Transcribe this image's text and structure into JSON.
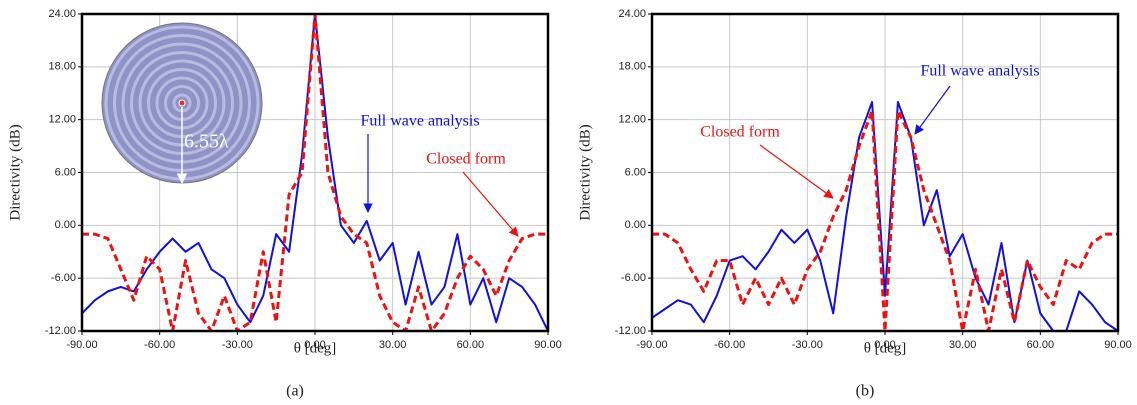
{
  "chart_data": [
    {
      "type": "line",
      "caption": "(a)",
      "xlabel": "θ [deg]",
      "ylabel": "Directivity (dB)",
      "inset_label": "6.55λ",
      "x": [
        -90,
        -85,
        -80,
        -75,
        -70,
        -65,
        -60,
        -55,
        -50,
        -45,
        -40,
        -35,
        -30,
        -25,
        -20,
        -15,
        -10,
        -5,
        0,
        5,
        10,
        15,
        20,
        25,
        30,
        35,
        40,
        45,
        50,
        55,
        60,
        65,
        70,
        75,
        80,
        85,
        90
      ],
      "series": [
        {
          "name": "Full wave analysis",
          "color": "#1010e0",
          "style": "solid",
          "values": [
            -10,
            -8.5,
            -7.5,
            -7,
            -7.5,
            -5,
            -3,
            -1.5,
            -3,
            -2,
            -5,
            -6,
            -9,
            -11,
            -8,
            -1,
            -3,
            8,
            24,
            10,
            0,
            -2,
            0.5,
            -4,
            -2,
            -9,
            -3,
            -9,
            -7,
            -1,
            -9,
            -6,
            -11,
            -6,
            -7,
            -9,
            -12
          ]
        },
        {
          "name": "Closed form",
          "color": "#ee1111",
          "style": "dashed",
          "values": [
            -1,
            -1,
            -1.5,
            -5,
            -8.5,
            -3.5,
            -5,
            -12,
            -4,
            -10,
            -12,
            -8,
            -12,
            -11,
            -3,
            -11,
            3.5,
            6,
            24,
            6,
            1,
            -1,
            -2,
            -8,
            -11,
            -12,
            -7,
            -12,
            -10,
            -6,
            -3.5,
            -5,
            -8,
            -4,
            -1.5,
            -1,
            -1
          ]
        }
      ],
      "xlim": [
        -90,
        90
      ],
      "ylim": [
        -12,
        24
      ],
      "grid": true,
      "xticks": [
        {
          "value": -90,
          "label": "-90.00"
        },
        {
          "value": -60,
          "label": "-60.00"
        },
        {
          "value": -30,
          "label": "-30.00"
        },
        {
          "value": 0,
          "label": "0.00"
        },
        {
          "value": 30,
          "label": "30.00"
        },
        {
          "value": 60,
          "label": "60.00"
        },
        {
          "value": 90,
          "label": "90.00"
        }
      ],
      "yticks": [
        {
          "value": -12,
          "label": "-12.00"
        },
        {
          "value": -6,
          "label": "-6.00"
        },
        {
          "value": 0,
          "label": "0.00"
        },
        {
          "value": 6,
          "label": "6.00"
        },
        {
          "value": 12,
          "label": "12.00"
        },
        {
          "value": 18,
          "label": "18.00"
        },
        {
          "value": 24,
          "label": "24.00"
        }
      ]
    },
    {
      "type": "line",
      "caption": "(b)",
      "xlabel": "θ [deg]",
      "ylabel": "Directivity (dB)",
      "x": [
        -90,
        -85,
        -80,
        -75,
        -70,
        -65,
        -60,
        -55,
        -50,
        -45,
        -40,
        -35,
        -30,
        -25,
        -20,
        -15,
        -10,
        -5,
        0,
        5,
        10,
        15,
        20,
        25,
        30,
        35,
        40,
        45,
        50,
        55,
        60,
        65,
        70,
        75,
        80,
        85,
        90
      ],
      "series": [
        {
          "name": "Full wave analysis",
          "color": "#1010e0",
          "style": "solid",
          "values": [
            -10.5,
            -9.5,
            -8.5,
            -9,
            -11,
            -8,
            -4,
            -3.5,
            -5,
            -3,
            -0.5,
            -2,
            -0.5,
            -4,
            -10,
            1,
            10,
            14,
            -8,
            14,
            10,
            0,
            4,
            -3.5,
            -1,
            -6,
            -9,
            -2,
            -11,
            -4,
            -10,
            -12,
            -12,
            -7.5,
            -9,
            -11,
            -12
          ]
        },
        {
          "name": "Closed form",
          "color": "#ee1111",
          "style": "dashed",
          "values": [
            -1,
            -1,
            -2,
            -5,
            -7.5,
            -4,
            -4,
            -9,
            -6,
            -9,
            -6,
            -9,
            -5,
            -3,
            1,
            4,
            9,
            13,
            -12,
            13,
            10,
            4,
            0,
            -4,
            -12,
            -5,
            -12,
            -5,
            -11,
            -4,
            -7,
            -9,
            -4,
            -5,
            -2,
            -1,
            -1
          ]
        }
      ],
      "xlim": [
        -90,
        90
      ],
      "ylim": [
        -12,
        24
      ],
      "grid": true,
      "xticks": [
        {
          "value": -90,
          "label": "-90.00"
        },
        {
          "value": -60,
          "label": "-60.00"
        },
        {
          "value": -30,
          "label": "-30.00"
        },
        {
          "value": 0,
          "label": "0.00"
        },
        {
          "value": 30,
          "label": "30.00"
        },
        {
          "value": 60,
          "label": "60.00"
        },
        {
          "value": 90,
          "label": "90.00"
        }
      ],
      "yticks": [
        {
          "value": -12,
          "label": "-12.00"
        },
        {
          "value": -6,
          "label": "-6.00"
        },
        {
          "value": 0,
          "label": "0.00"
        },
        {
          "value": 6,
          "label": "6.00"
        },
        {
          "value": 12,
          "label": "12.00"
        },
        {
          "value": 18,
          "label": "18.00"
        },
        {
          "value": 24,
          "label": "24.00"
        }
      ]
    }
  ]
}
